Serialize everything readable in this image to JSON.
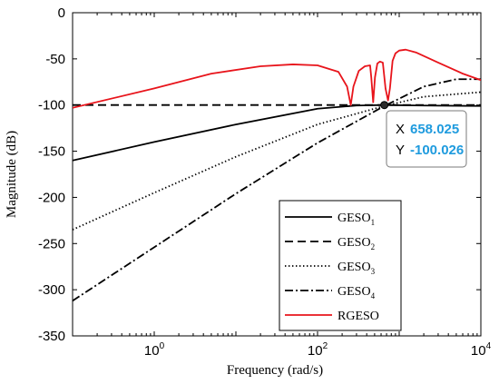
{
  "chart_data": {
    "type": "line",
    "xlabel": "Frequency (rad/s)",
    "ylabel": "Magnitude (dB)",
    "xscale": "log",
    "xlim": [
      0.1,
      10000
    ],
    "ylim": [
      -350,
      0
    ],
    "x_ticks": [
      {
        "base": "10",
        "exp": "0",
        "value": 1
      },
      {
        "base": "10",
        "exp": "2",
        "value": 100
      },
      {
        "base": "10",
        "exp": "4",
        "value": 10000
      }
    ],
    "y_ticks": [
      0,
      -50,
      -100,
      -150,
      -200,
      -250,
      -300,
      -350
    ],
    "grid": false,
    "legend_position": "bottom-right",
    "series": [
      {
        "name": "GESO",
        "sub": "1",
        "color": "#000000",
        "dash": "solid",
        "points": [
          [
            0.1,
            -160
          ],
          [
            1,
            -140
          ],
          [
            10,
            -121
          ],
          [
            100,
            -104
          ],
          [
            300,
            -100.5
          ],
          [
            658,
            -100
          ],
          [
            2000,
            -100.5
          ],
          [
            10000,
            -101
          ]
        ]
      },
      {
        "name": "GESO",
        "sub": "2",
        "color": "#000000",
        "dash": "dashed",
        "points": [
          [
            0.1,
            -100
          ],
          [
            10000,
            -100
          ]
        ]
      },
      {
        "name": "GESO",
        "sub": "3",
        "color": "#000000",
        "dash": "dotted",
        "points": [
          [
            0.1,
            -235
          ],
          [
            1,
            -195
          ],
          [
            10,
            -156
          ],
          [
            100,
            -121
          ],
          [
            658,
            -101
          ],
          [
            2000,
            -91
          ],
          [
            10000,
            -86
          ]
        ]
      },
      {
        "name": "GESO",
        "sub": "4",
        "color": "#000000",
        "dash": "dashdot",
        "points": [
          [
            0.1,
            -312
          ],
          [
            1,
            -254
          ],
          [
            10,
            -196
          ],
          [
            100,
            -141
          ],
          [
            658,
            -101
          ],
          [
            2000,
            -80
          ],
          [
            5000,
            -72
          ],
          [
            10000,
            -72
          ]
        ]
      },
      {
        "name": "RGESO",
        "sub": "",
        "color": "#e8141b",
        "dash": "solid",
        "points": [
          [
            0.1,
            -103
          ],
          [
            1,
            -82
          ],
          [
            5,
            -66
          ],
          [
            20,
            -58
          ],
          [
            50,
            -56
          ],
          [
            100,
            -57
          ],
          [
            180,
            -64
          ],
          [
            230,
            -80
          ],
          [
            255,
            -100
          ],
          [
            275,
            -80
          ],
          [
            320,
            -63
          ],
          [
            380,
            -58
          ],
          [
            440,
            -57
          ],
          [
            455,
            -70
          ],
          [
            480,
            -97
          ],
          [
            505,
            -70
          ],
          [
            540,
            -55
          ],
          [
            580,
            -53
          ],
          [
            630,
            -54
          ],
          [
            680,
            -82
          ],
          [
            730,
            -95
          ],
          [
            770,
            -82
          ],
          [
            830,
            -52
          ],
          [
            900,
            -44
          ],
          [
            1000,
            -41
          ],
          [
            1200,
            -40
          ],
          [
            1600,
            -43
          ],
          [
            3000,
            -54
          ],
          [
            6000,
            -66
          ],
          [
            10000,
            -73
          ]
        ]
      }
    ],
    "datatip": {
      "x_label": "X",
      "x_value": "658.025",
      "y_label": "Y",
      "y_value": "-100.026",
      "x": 658.025,
      "y": -100.026
    }
  }
}
